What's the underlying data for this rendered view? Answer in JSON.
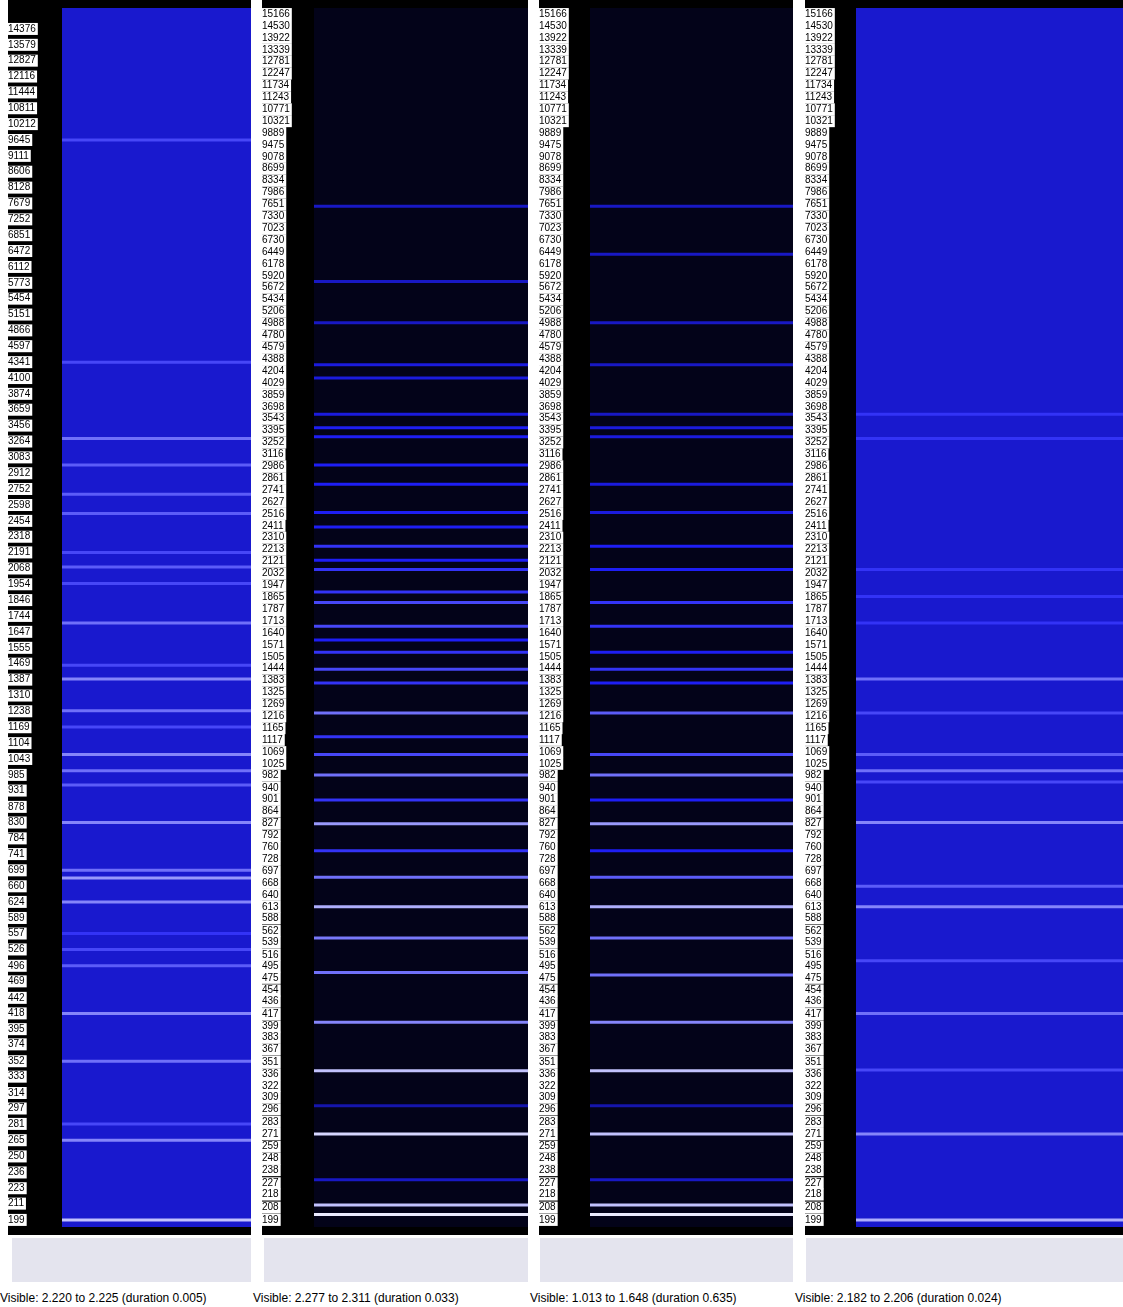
{
  "chart_data": [
    {
      "type": "heatmap",
      "log": "y",
      "grid": false,
      "tick_labels": "y",
      "ylim": [
        194,
        15500
      ],
      "yticks": [
        14376,
        13579,
        12827,
        12116,
        11444,
        10811,
        10212,
        9645,
        9111,
        8606,
        8128,
        7679,
        7252,
        6851,
        6472,
        6112,
        5773,
        5454,
        5151,
        4866,
        4597,
        4341,
        4100,
        3874,
        3659,
        3456,
        3264,
        3083,
        2912,
        2752,
        2598,
        2454,
        2318,
        2191,
        2068,
        1954,
        1846,
        1744,
        1647,
        1555,
        1469,
        1387,
        1310,
        1238,
        1169,
        1104,
        1043,
        985,
        931,
        878,
        830,
        784,
        741,
        699,
        660,
        624,
        589,
        557,
        526,
        496,
        469,
        442,
        418,
        395,
        374,
        352,
        333,
        314,
        297,
        281,
        265,
        250,
        236,
        223,
        211,
        199
      ],
      "floor": 0.42,
      "bands": {
        "freqs": [
          199,
          265,
          281,
          352,
          418,
          496,
          526,
          557,
          624,
          680,
          699,
          830,
          950,
          1000,
          1060,
          1170,
          1240,
          1390,
          1460,
          1700,
          1960,
          2080,
          2191,
          2520,
          2700,
          3000,
          3300,
          4340,
          9645
        ],
        "levels": [
          0.9,
          0.75,
          0.6,
          0.7,
          0.75,
          0.65,
          0.6,
          0.55,
          0.75,
          0.8,
          0.7,
          0.75,
          0.65,
          0.7,
          0.75,
          0.6,
          0.7,
          0.75,
          0.6,
          0.7,
          0.6,
          0.65,
          0.6,
          0.65,
          0.65,
          0.65,
          0.7,
          0.6,
          0.6
        ]
      },
      "annotations": [
        "Visible: 2.220 to 2.225 (duration 0.005)"
      ]
    },
    {
      "type": "heatmap",
      "log": "y",
      "grid": false,
      "tick_labels": "y",
      "ylim": [
        194,
        15500
      ],
      "yticks": [
        15166,
        14530,
        13922,
        13339,
        12781,
        12247,
        11734,
        11243,
        10771,
        10321,
        9889,
        9475,
        9078,
        8699,
        8334,
        7986,
        7651,
        7330,
        7023,
        6730,
        6449,
        6178,
        5920,
        5672,
        5434,
        5206,
        4988,
        4780,
        4579,
        4388,
        4204,
        4029,
        3859,
        3698,
        3543,
        3395,
        3252,
        3116,
        2986,
        2861,
        2741,
        2627,
        2516,
        2411,
        2310,
        2213,
        2121,
        2032,
        1947,
        1865,
        1787,
        1713,
        1640,
        1571,
        1505,
        1444,
        1383,
        1325,
        1269,
        1216,
        1165,
        1117,
        1069,
        1025,
        982,
        940,
        901,
        864,
        827,
        792,
        760,
        728,
        697,
        668,
        640,
        613,
        588,
        562,
        539,
        516,
        495,
        475,
        454,
        436,
        417,
        399,
        383,
        367,
        351,
        336,
        322,
        309,
        296,
        283,
        271,
        259,
        248,
        238,
        227,
        218,
        208,
        199
      ],
      "floor": 0.05,
      "bands": {
        "freqs": [
          203,
          210,
          230,
          271,
          300,
          340,
          405,
          484,
          548,
          613,
          682,
          750,
          826,
          900,
          985,
          1060,
          1130,
          1230,
          1370,
          1440,
          1530,
          1600,
          1680,
          1830,
          1900,
          2060,
          2130,
          2240,
          2400,
          2530,
          2800,
          3000,
          3320,
          3430,
          3600,
          4100,
          4300,
          5000,
          5800,
          7600
        ],
        "levels": [
          1.0,
          0.9,
          0.4,
          0.95,
          0.35,
          0.9,
          0.75,
          0.7,
          0.72,
          0.85,
          0.7,
          0.55,
          0.8,
          0.55,
          0.7,
          0.6,
          0.55,
          0.7,
          0.55,
          0.6,
          0.55,
          0.5,
          0.6,
          0.6,
          0.55,
          0.55,
          0.5,
          0.55,
          0.5,
          0.5,
          0.5,
          0.5,
          0.5,
          0.5,
          0.45,
          0.45,
          0.45,
          0.4,
          0.4,
          0.4
        ]
      },
      "annotations": [
        "Visible: 2.277 to 2.311 (duration 0.033)"
      ]
    },
    {
      "type": "heatmap",
      "log": "y",
      "grid": false,
      "tick_labels": "y",
      "ylim": [
        194,
        15500
      ],
      "yticks": [
        15166,
        14530,
        13922,
        13339,
        12781,
        12247,
        11734,
        11243,
        10771,
        10321,
        9889,
        9475,
        9078,
        8699,
        8334,
        7986,
        7651,
        7330,
        7023,
        6730,
        6449,
        6178,
        5920,
        5672,
        5434,
        5206,
        4988,
        4780,
        4579,
        4388,
        4204,
        4029,
        3859,
        3698,
        3543,
        3395,
        3252,
        3116,
        2986,
        2861,
        2741,
        2627,
        2516,
        2411,
        2310,
        2213,
        2121,
        2032,
        1947,
        1865,
        1787,
        1713,
        1640,
        1571,
        1505,
        1444,
        1383,
        1325,
        1269,
        1216,
        1165,
        1117,
        1069,
        1025,
        982,
        940,
        901,
        864,
        827,
        792,
        760,
        728,
        697,
        668,
        640,
        613,
        588,
        562,
        539,
        516,
        495,
        475,
        454,
        436,
        417,
        399,
        383,
        367,
        351,
        336,
        322,
        309,
        296,
        283,
        271,
        259,
        248,
        238,
        227,
        218,
        208,
        199
      ],
      "floor": 0.05,
      "bands": {
        "freqs": [
          203,
          210,
          230,
          271,
          300,
          340,
          405,
          480,
          548,
          613,
          682,
          750,
          826,
          900,
          985,
          1060,
          1230,
          1370,
          1440,
          1530,
          1680,
          1830,
          2060,
          2240,
          2530,
          2800,
          3320,
          3430,
          3600,
          4300,
          5000,
          6400,
          7600
        ],
        "levels": [
          1.0,
          0.9,
          0.4,
          0.9,
          0.35,
          0.9,
          0.75,
          0.7,
          0.7,
          0.85,
          0.65,
          0.5,
          0.8,
          0.5,
          0.7,
          0.6,
          0.65,
          0.5,
          0.55,
          0.5,
          0.55,
          0.55,
          0.5,
          0.5,
          0.45,
          0.45,
          0.45,
          0.45,
          0.4,
          0.4,
          0.4,
          0.4,
          0.4
        ]
      },
      "annotations": [
        "Visible: 1.013 to 1.648 (duration 0.635)"
      ]
    },
    {
      "type": "heatmap",
      "log": "y",
      "grid": false,
      "tick_labels": "y",
      "ylim": [
        194,
        15500
      ],
      "yticks": [
        15166,
        14530,
        13922,
        13339,
        12781,
        12247,
        11734,
        11243,
        10771,
        10321,
        9889,
        9475,
        9078,
        8699,
        8334,
        7986,
        7651,
        7330,
        7023,
        6730,
        6449,
        6178,
        5920,
        5672,
        5434,
        5206,
        4988,
        4780,
        4579,
        4388,
        4204,
        4029,
        3859,
        3698,
        3543,
        3395,
        3252,
        3116,
        2986,
        2861,
        2741,
        2627,
        2516,
        2411,
        2310,
        2213,
        2121,
        2032,
        1947,
        1865,
        1787,
        1713,
        1640,
        1571,
        1505,
        1444,
        1383,
        1325,
        1269,
        1216,
        1165,
        1117,
        1069,
        1025,
        982,
        940,
        901,
        864,
        827,
        792,
        760,
        728,
        697,
        668,
        640,
        613,
        588,
        562,
        539,
        516,
        495,
        475,
        454,
        436,
        417,
        399,
        383,
        367,
        351,
        336,
        322,
        309,
        296,
        283,
        271,
        259,
        248,
        238,
        227,
        218,
        208,
        199
      ],
      "floor": 0.42,
      "bands": {
        "freqs": [
          199,
          271,
          341,
          418,
          505,
          613,
          660,
          830,
          960,
          1000,
          1060,
          1230,
          1390,
          1700,
          1870,
          2060,
          3300,
          3600
        ],
        "levels": [
          0.85,
          0.75,
          0.6,
          0.7,
          0.6,
          0.75,
          0.65,
          0.75,
          0.6,
          0.7,
          0.65,
          0.6,
          0.7,
          0.55,
          0.55,
          0.55,
          0.55,
          0.55
        ]
      },
      "annotations": [
        "Visible: 2.182 to 2.206 (duration 0.024)"
      ]
    }
  ]
}
